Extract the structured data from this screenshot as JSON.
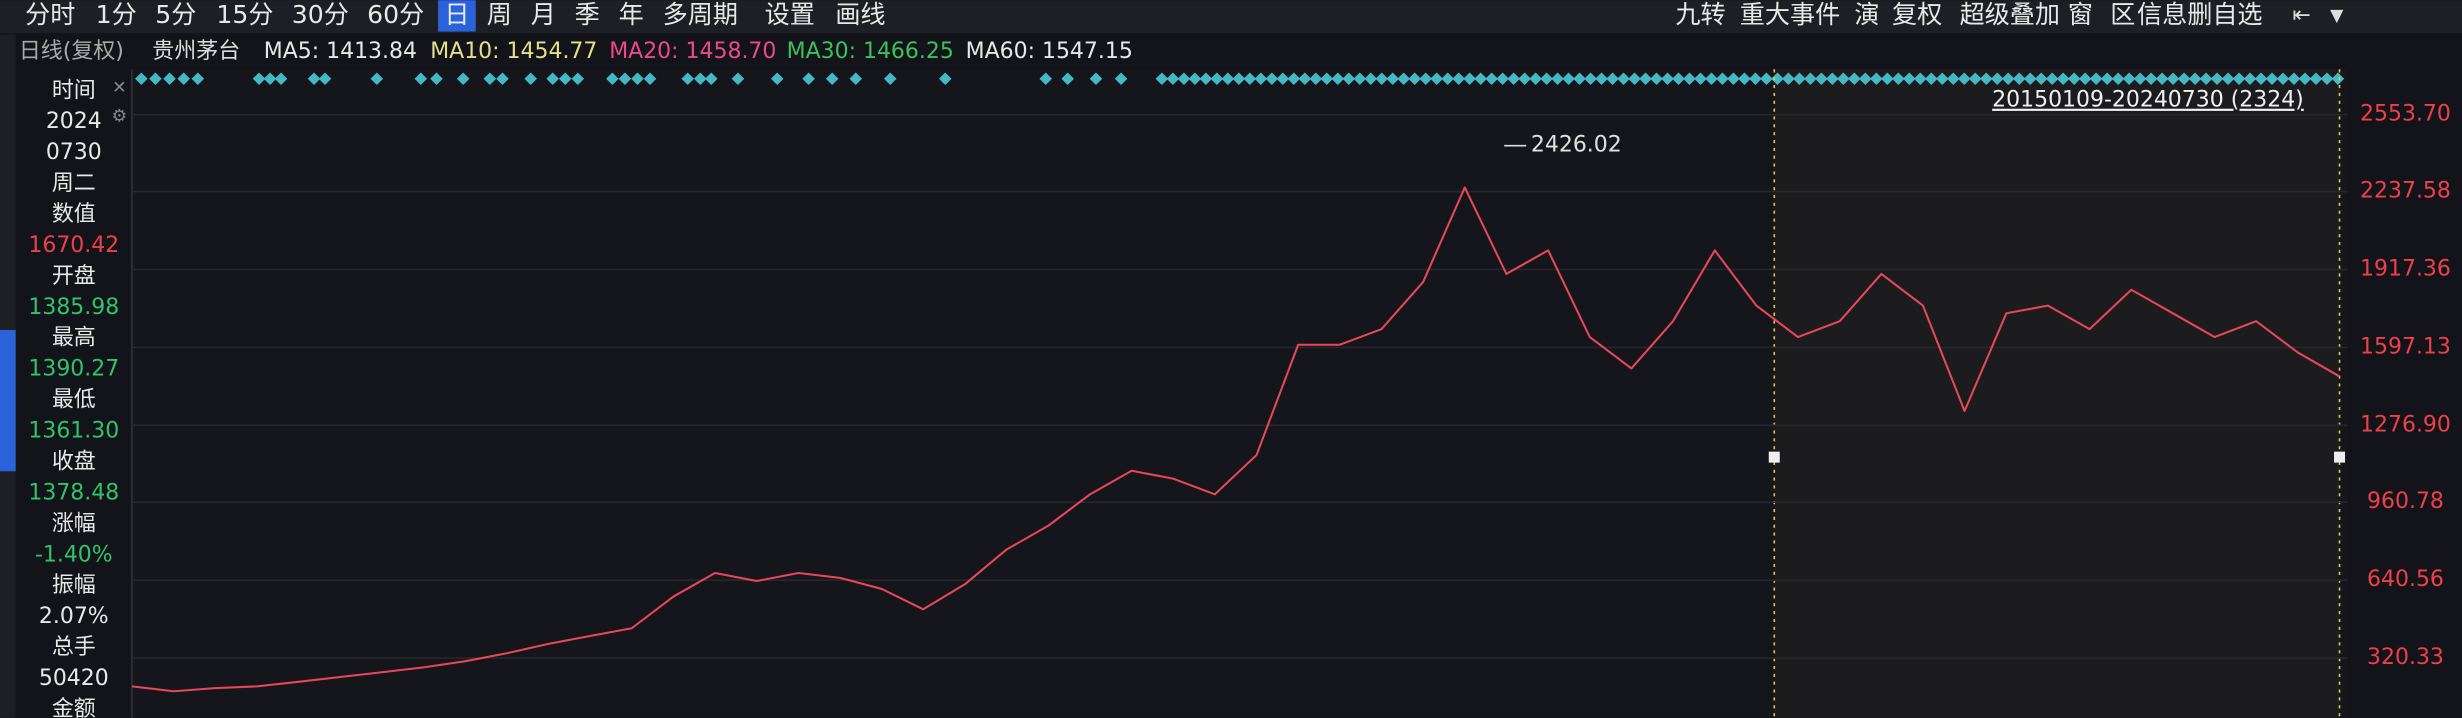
{
  "toolbar_left": [
    "分时",
    "1分",
    "5分",
    "15分",
    "30分",
    "60分",
    "日",
    "周",
    "月",
    "季",
    "年",
    "多周期",
    "设置",
    "画线"
  ],
  "toolbar_right": [
    "九转",
    "重大事件",
    "演",
    "复权",
    "超级叠加",
    "窗",
    "区",
    "信息删自选"
  ],
  "legend": {
    "period": "日线(复权)",
    "stock": "贵州茅台",
    "items": [
      {
        "text": "MA5: 1413.84",
        "color": "#e8e8e8"
      },
      {
        "text": "MA10: 1454.77",
        "color": "#e6df8c"
      },
      {
        "text": "MA20: 1458.70",
        "color": "#ea4a8c"
      },
      {
        "text": "MA30: 1466.25",
        "color": "#3cc05c"
      },
      {
        "text": "MA60: 1547.15",
        "color": "#e8e8e8"
      }
    ]
  },
  "side_panel": [
    {
      "text": "时间",
      "color": "#e8e8e8"
    },
    {
      "text": "2024",
      "color": "#e8e8e8"
    },
    {
      "text": "0730",
      "color": "#e8e8e8"
    },
    {
      "text": "周二",
      "color": "#e8e8e8"
    },
    {
      "text": "数值",
      "color": "#e8e8e8"
    },
    {
      "text": "1670.42",
      "color": "#ee3f4d"
    },
    {
      "text": "开盘",
      "color": "#e8e8e8"
    },
    {
      "text": "1385.98",
      "color": "#2fc36a"
    },
    {
      "text": "最高",
      "color": "#e8e8e8"
    },
    {
      "text": "1390.27",
      "color": "#2fc36a"
    },
    {
      "text": "最低",
      "color": "#e8e8e8"
    },
    {
      "text": "1361.30",
      "color": "#2fc36a"
    },
    {
      "text": "收盘",
      "color": "#e8e8e8"
    },
    {
      "text": "1378.48",
      "color": "#2fc36a"
    },
    {
      "text": "涨幅",
      "color": "#e8e8e8"
    },
    {
      "text": "-1.40%",
      "color": "#2fc36a"
    },
    {
      "text": "振幅",
      "color": "#e8e8e8"
    },
    {
      "text": "2.07%",
      "color": "#e8e8e8"
    },
    {
      "text": "总手",
      "color": "#e8e8e8"
    },
    {
      "text": "50420",
      "color": "#e8e8e8"
    },
    {
      "text": "金额",
      "color": "#e8e8e8"
    }
  ],
  "chart_data": {
    "type": "line",
    "range_label": "20150109-20240730 (2324)",
    "high_label": 2426.02,
    "ylim": [
      75,
      2740
    ],
    "yticks": [
      {
        "value": 2553.7,
        "label": "2553.70"
      },
      2237.58,
      1917.36,
      1597.13,
      {
        "value": 1276.9,
        "label": "1276.90"
      },
      960.78,
      640.56,
      320.33
    ],
    "grid": true,
    "tick_color": "#ee3f4d",
    "series": [
      {
        "color": "#e8475a",
        "values": [
          204,
          184,
          197,
          204,
          223,
          243,
          262,
          282,
          307,
          340,
          379,
          411,
          443,
          573,
          670,
          637,
          670,
          650,
          605,
          521,
          624,
          767,
          864,
          993,
          1090,
          1058,
          993,
          1155,
          1608,
          1608,
          1672,
          1866,
          2255,
          1899,
          1996,
          1640,
          1511,
          1705,
          1996,
          1769,
          1640,
          1705,
          1899,
          1769,
          1336,
          1737,
          1769,
          1672,
          1834,
          1737,
          1640,
          1705,
          1576,
          1478
        ]
      }
    ]
  }
}
